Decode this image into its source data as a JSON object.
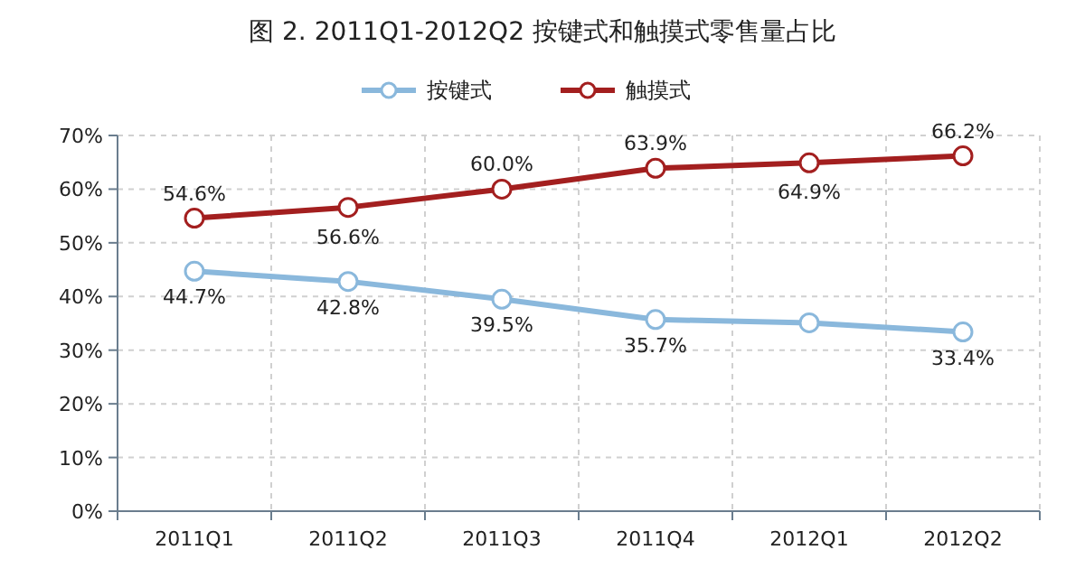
{
  "chart_data": {
    "type": "line",
    "title": "图 2. 2011Q1-2012Q2 按键式和触摸式零售量占比",
    "categories": [
      "2011Q1",
      "2011Q2",
      "2011Q3",
      "2011Q4",
      "2012Q1",
      "2012Q2"
    ],
    "series": [
      {
        "name": "按键式",
        "color": "#8ab8dc",
        "values": [
          44.7,
          42.8,
          39.5,
          35.7,
          35.1,
          33.4
        ],
        "value_labels": [
          "44.7%",
          "42.8%",
          "39.5%",
          "35.7%",
          null,
          "33.4%"
        ]
      },
      {
        "name": "触摸式",
        "color": "#a31f1f",
        "values": [
          54.6,
          56.6,
          60.0,
          63.9,
          64.9,
          66.2
        ],
        "value_labels": [
          "54.6%",
          "56.6%",
          "60.0%",
          "63.9%",
          "64.9%",
          "66.2%"
        ]
      }
    ],
    "ylim": [
      0,
      70
    ],
    "yticks": [
      {
        "value": 0,
        "label": "0%"
      },
      {
        "value": 10,
        "label": "10%"
      },
      {
        "value": 20,
        "label": "20%"
      },
      {
        "value": 30,
        "label": "30%"
      },
      {
        "value": 40,
        "label": "40%"
      },
      {
        "value": 50,
        "label": "50%"
      },
      {
        "value": 60,
        "label": "60%"
      },
      {
        "value": 70,
        "label": "70%"
      }
    ],
    "grid": true,
    "legend": "top",
    "marker": "circle"
  }
}
